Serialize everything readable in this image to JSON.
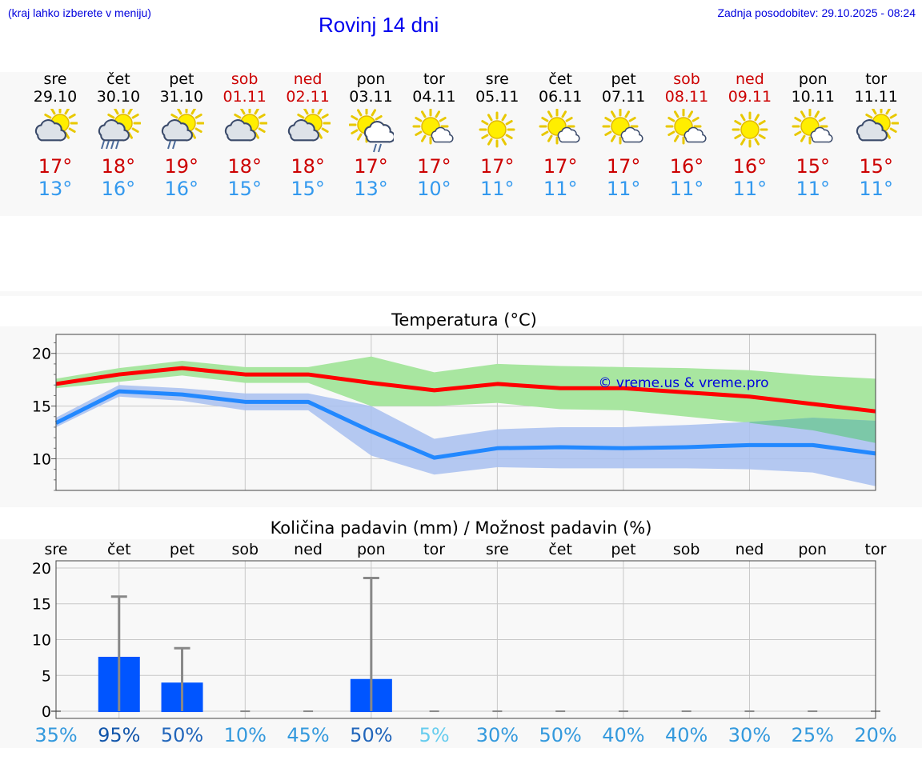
{
  "header": {
    "hint": "(kraj lahko izberete v meniju)",
    "title": "Rovinj 14 dni",
    "updated": "Zadnja posodobitev: 29.10.2025 - 08:24"
  },
  "days": [
    {
      "name": "sre",
      "date": "29.10",
      "tmax": "17°",
      "tmin": "13°",
      "weekend": false,
      "icon": "sun-cloud-icon"
    },
    {
      "name": "čet",
      "date": "30.10",
      "tmax": "18°",
      "tmin": "16°",
      "weekend": false,
      "icon": "sun-cloud-rain-icon"
    },
    {
      "name": "pet",
      "date": "31.10",
      "tmax": "19°",
      "tmin": "16°",
      "weekend": false,
      "icon": "sun-cloud-light-rain-icon"
    },
    {
      "name": "sob",
      "date": "01.11",
      "tmax": "18°",
      "tmin": "15°",
      "weekend": true,
      "icon": "sun-cloud-icon"
    },
    {
      "name": "ned",
      "date": "02.11",
      "tmax": "18°",
      "tmin": "15°",
      "weekend": true,
      "icon": "sun-cloud-icon"
    },
    {
      "name": "pon",
      "date": "03.11",
      "tmax": "17°",
      "tmin": "13°",
      "weekend": false,
      "icon": "sun-cloud-shower-icon"
    },
    {
      "name": "tor",
      "date": "04.11",
      "tmax": "17°",
      "tmin": "10°",
      "weekend": false,
      "icon": "sun-small-cloud-icon"
    },
    {
      "name": "sre",
      "date": "05.11",
      "tmax": "17°",
      "tmin": "11°",
      "weekend": false,
      "icon": "sun-icon"
    },
    {
      "name": "čet",
      "date": "06.11",
      "tmax": "17°",
      "tmin": "11°",
      "weekend": false,
      "icon": "sun-small-cloud-icon"
    },
    {
      "name": "pet",
      "date": "07.11",
      "tmax": "17°",
      "tmin": "11°",
      "weekend": false,
      "icon": "sun-small-cloud-icon"
    },
    {
      "name": "sob",
      "date": "08.11",
      "tmax": "16°",
      "tmin": "11°",
      "weekend": true,
      "icon": "sun-small-cloud-icon"
    },
    {
      "name": "ned",
      "date": "09.11",
      "tmax": "16°",
      "tmin": "11°",
      "weekend": true,
      "icon": "sun-icon"
    },
    {
      "name": "pon",
      "date": "10.11",
      "tmax": "15°",
      "tmin": "11°",
      "weekend": false,
      "icon": "sun-small-cloud-icon"
    },
    {
      "name": "tor",
      "date": "11.11",
      "tmax": "15°",
      "tmin": "11°",
      "weekend": false,
      "icon": "sun-cloud-icon"
    }
  ],
  "colors": {
    "max_line": "#ff0000",
    "min_line": "#2288ff",
    "max_band": "#a8e6a0",
    "min_band": "#a8c0f0",
    "overlap_band": "#7cc8a8",
    "bar": "#0055ff",
    "whisker": "#888888",
    "grid": "#c8c8c8",
    "weekend": "#cc0000"
  },
  "chart_data": [
    {
      "type": "line",
      "title": "Temperatura (°C)",
      "watermark": "© vreme.us & vreme.pro",
      "x": [
        0,
        1,
        2,
        3,
        4,
        5,
        6,
        7,
        8,
        9,
        10,
        11,
        12,
        13
      ],
      "ylim": [
        7,
        21.8
      ],
      "yticks": [
        10,
        15,
        20
      ],
      "series": [
        {
          "name": "max",
          "values": [
            17.1,
            18.0,
            18.6,
            18.0,
            18.0,
            17.2,
            16.5,
            17.1,
            16.7,
            16.7,
            16.3,
            15.9,
            15.2,
            14.5
          ],
          "band_low": [
            16.7,
            17.3,
            17.9,
            17.2,
            17.2,
            15.0,
            15.0,
            15.3,
            14.7,
            14.6,
            14.0,
            13.4,
            12.7,
            11.5
          ],
          "band_high": [
            17.6,
            18.6,
            19.3,
            18.7,
            18.7,
            19.7,
            18.2,
            19.0,
            18.8,
            18.7,
            18.6,
            18.4,
            17.9,
            17.6
          ]
        },
        {
          "name": "min",
          "values": [
            13.4,
            16.4,
            16.1,
            15.4,
            15.4,
            12.6,
            10.1,
            11.0,
            11.1,
            11.0,
            11.1,
            11.3,
            11.3,
            10.5
          ],
          "band_low": [
            13.0,
            15.9,
            15.5,
            14.6,
            14.6,
            10.3,
            8.5,
            9.2,
            9.1,
            9.1,
            9.1,
            9.0,
            8.7,
            7.4
          ],
          "band_high": [
            13.9,
            17.0,
            16.7,
            16.2,
            16.2,
            15.0,
            11.9,
            12.8,
            13.0,
            13.0,
            13.2,
            13.5,
            13.9,
            13.6
          ]
        }
      ]
    },
    {
      "type": "bar",
      "title": "Količina padavin (mm) / Možnost padavin (%)",
      "categories": [
        "sre",
        "čet",
        "pet",
        "sob",
        "ned",
        "pon",
        "tor",
        "sre",
        "čet",
        "pet",
        "sob",
        "ned",
        "pon",
        "tor"
      ],
      "values": [
        0,
        7.6,
        4.0,
        0,
        0,
        4.5,
        0,
        0,
        0,
        0,
        0,
        0,
        0,
        0
      ],
      "max_values": [
        0,
        16.0,
        8.8,
        0,
        0,
        18.6,
        0,
        0,
        0,
        0,
        0,
        0,
        0,
        0
      ],
      "ylim": [
        -1,
        21
      ],
      "yticks": [
        0,
        5,
        10,
        15,
        20
      ],
      "probabilities": [
        "35%",
        "95%",
        "50%",
        "10%",
        "45%",
        "50%",
        "5%",
        "30%",
        "50%",
        "40%",
        "40%",
        "30%",
        "25%",
        "20%"
      ],
      "probability_colors": [
        "#3399dd",
        "#1155aa",
        "#2266bb",
        "#3399dd",
        "#3399dd",
        "#2266bb",
        "#66ccee",
        "#3399dd",
        "#3399dd",
        "#3399dd",
        "#3399dd",
        "#3399dd",
        "#3399dd",
        "#3399dd"
      ]
    }
  ]
}
